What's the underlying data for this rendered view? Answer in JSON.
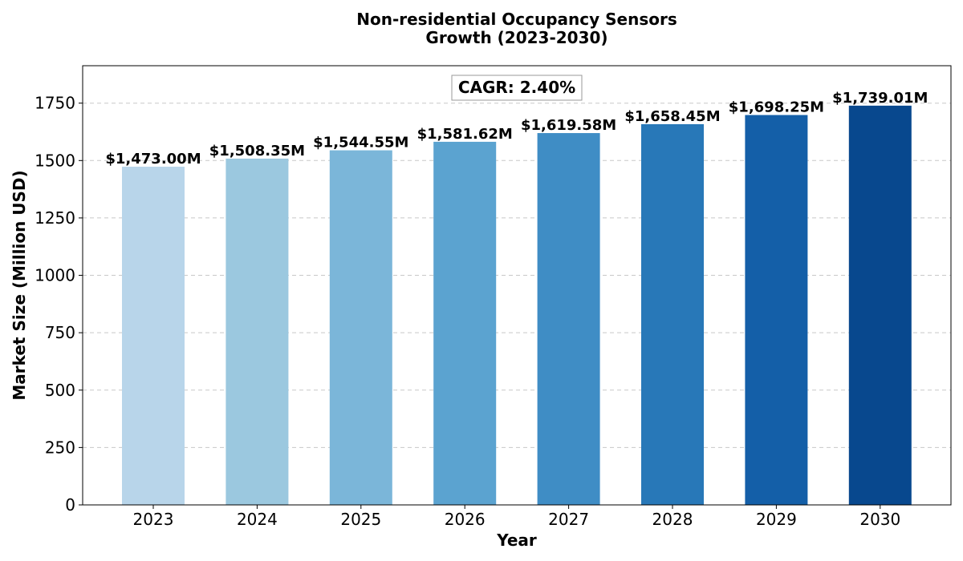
{
  "chart_data": {
    "type": "bar",
    "title_line1": "Non-residential Occupancy Sensors",
    "title_line2": "Growth (2023-2030)",
    "xlabel": "Year",
    "ylabel": "Market Size (Million USD)",
    "categories": [
      "2023",
      "2024",
      "2025",
      "2026",
      "2027",
      "2028",
      "2029",
      "2030"
    ],
    "values": [
      1473.0,
      1508.35,
      1544.55,
      1581.62,
      1619.58,
      1658.45,
      1698.25,
      1739.01
    ],
    "data_labels": [
      "$1,473.00M",
      "$1,508.35M",
      "$1,544.55M",
      "$1,581.62M",
      "$1,619.58M",
      "$1,658.45M",
      "$1,698.25M",
      "$1,739.01M"
    ],
    "colors": [
      "#b8d5ea",
      "#9bc8df",
      "#7bb6d9",
      "#5ba3d0",
      "#3f8dc5",
      "#2878b8",
      "#145fa8",
      "#08488e"
    ],
    "ylim": [
      0,
      1913
    ],
    "yticks": [
      0,
      250,
      500,
      750,
      1000,
      1250,
      1500,
      1750
    ],
    "grid": true,
    "annotation": "CAGR: 2.40%"
  }
}
